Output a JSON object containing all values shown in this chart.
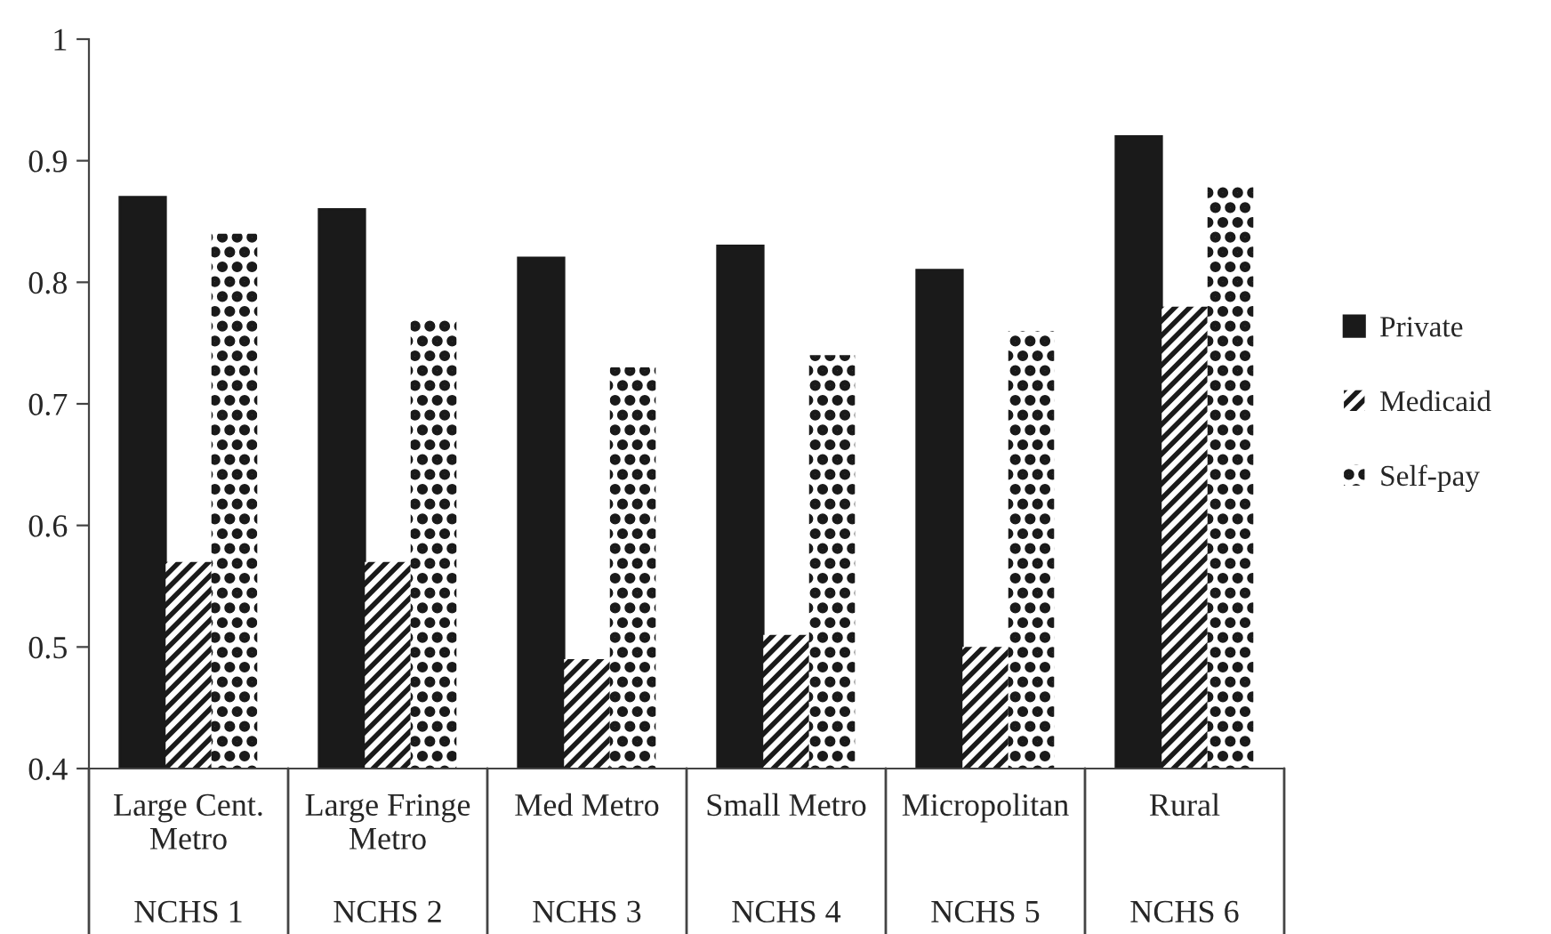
{
  "chart_data": {
    "type": "bar",
    "categories": [
      "Large Cent.\nMetro",
      "Large Fringe\nMetro",
      "Med Metro",
      "Small Metro",
      "Micropolitan",
      "Rural"
    ],
    "series": [
      {
        "name": "Private",
        "color": "#1a1a1a",
        "values": [
          0.87,
          0.86,
          0.82,
          0.83,
          0.81,
          0.92
        ]
      },
      {
        "name": "Medicaid",
        "color": "#1a1a1a",
        "values": [
          0.57,
          0.57,
          0.49,
          0.51,
          0.5,
          0.78
        ]
      },
      {
        "name": "Self-pay",
        "color": "#1a1a1a",
        "values": [
          0.84,
          0.77,
          0.73,
          0.74,
          0.76,
          0.88
        ]
      }
    ],
    "annotations": [
      "NCHS 1",
      "NCHS 2",
      "NCHS 3",
      "NCHS 4",
      "NCHS 5",
      "NCHS 6"
    ],
    "ylim": [
      0.4,
      1
    ],
    "yticks": [
      0.4,
      0.5,
      0.6,
      0.7,
      0.8,
      0.9,
      {
        "value": 1,
        "label": "1"
      }
    ],
    "legend": "right",
    "grid": false
  }
}
